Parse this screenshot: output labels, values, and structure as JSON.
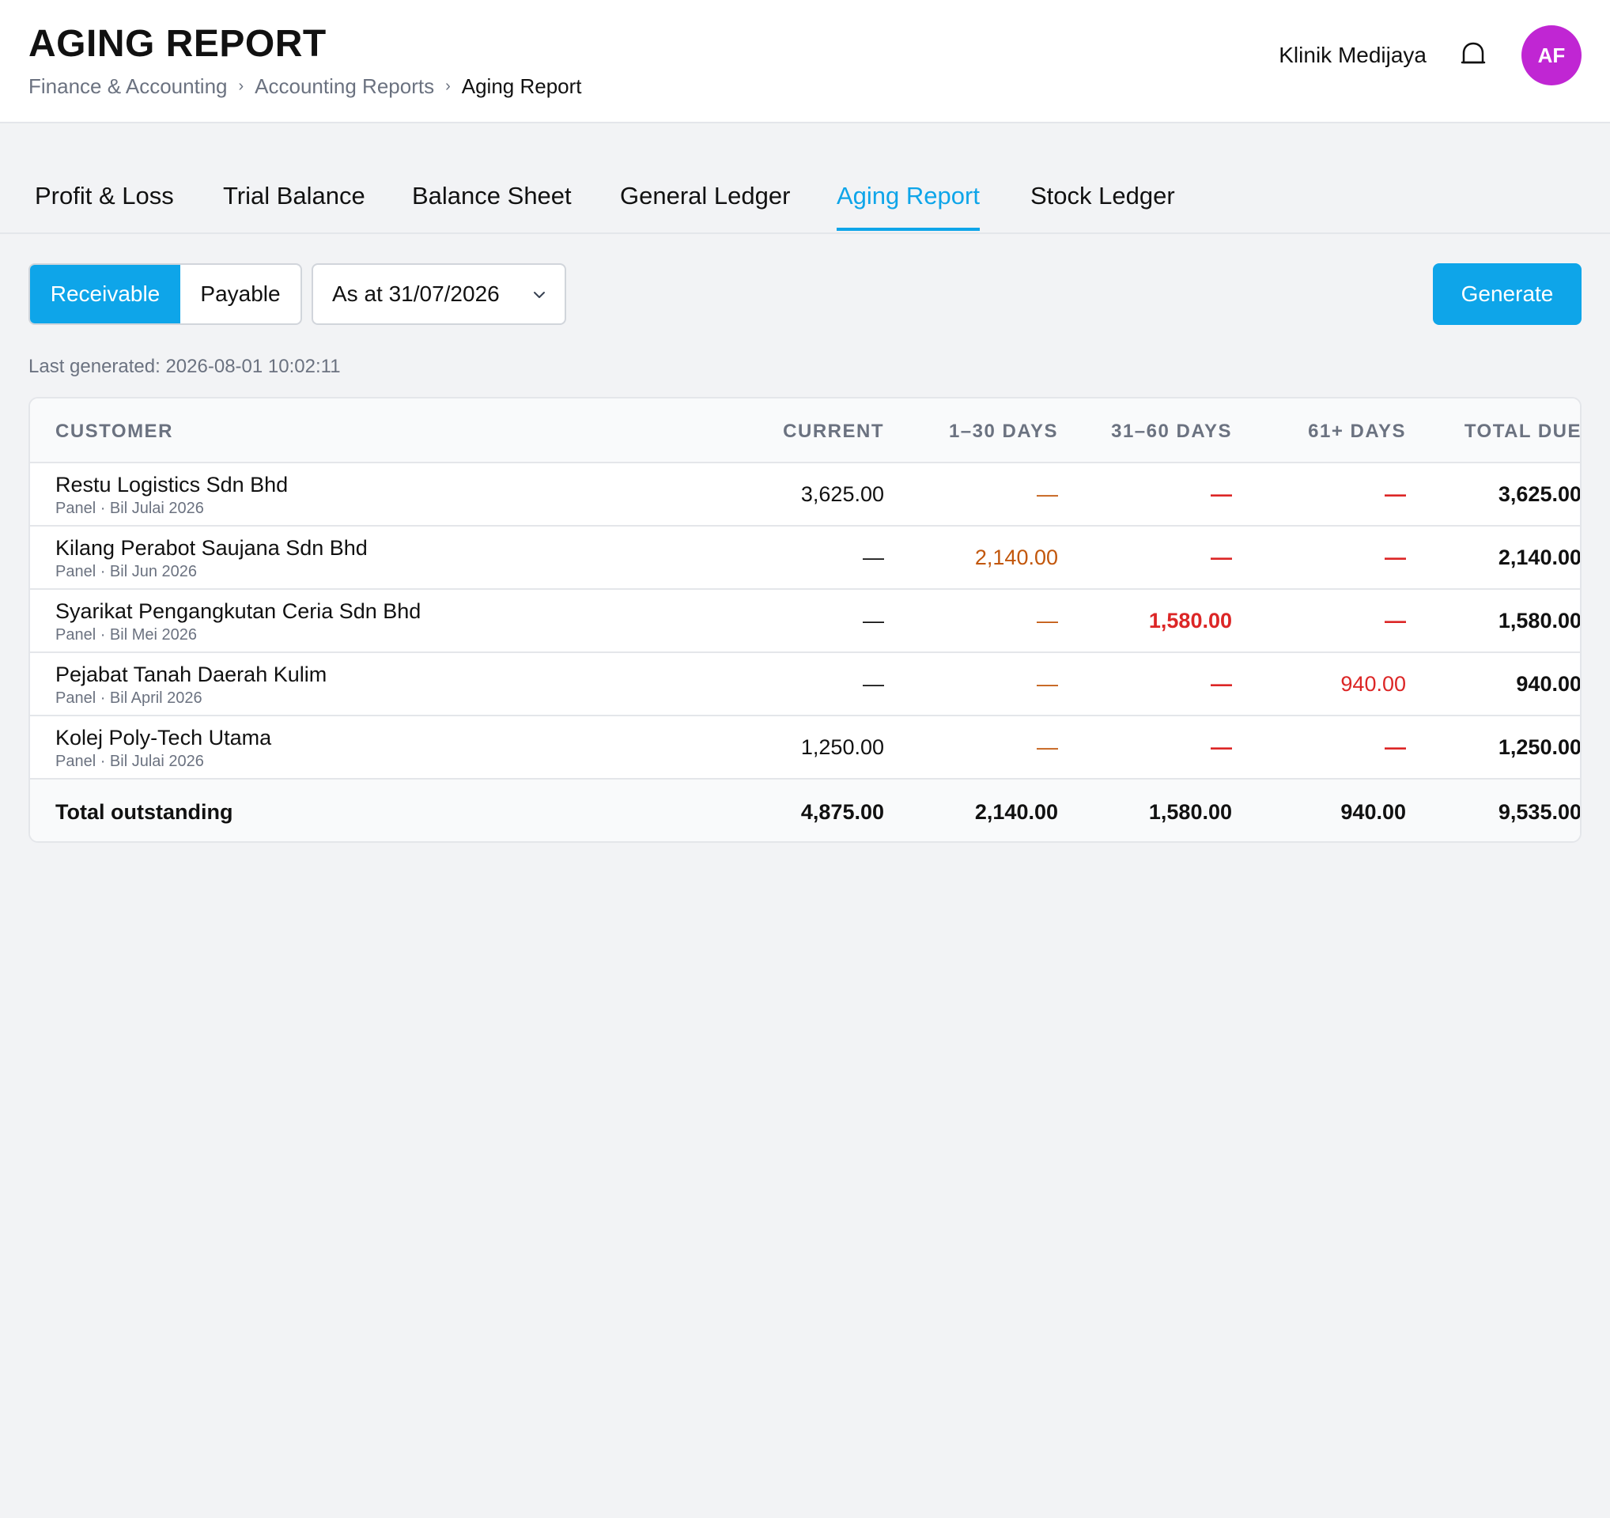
{
  "header": {
    "title": "AGING REPORT",
    "breadcrumb": [
      "Finance & Accounting",
      "Accounting Reports",
      "Aging Report"
    ],
    "org_name": "Klinik Medijaya",
    "avatar_initials": "AF"
  },
  "tabs": [
    "Profit & Loss",
    "Trial Balance",
    "Balance Sheet",
    "General Ledger",
    "Aging Report",
    "Stock Ledger"
  ],
  "active_tab": "Aging Report",
  "controls": {
    "segment_receivable": "Receivable",
    "segment_payable": "Payable",
    "active_segment": "Receivable",
    "date_select": "As at 31/07/2026",
    "generate_label": "Generate",
    "last_generated": "Last generated: 2026-08-01 10:02:11"
  },
  "table": {
    "columns": [
      "CUSTOMER",
      "CURRENT",
      "1–30 DAYS",
      "31–60 DAYS",
      "61+ DAYS",
      "TOTAL DUE"
    ],
    "rows": [
      {
        "name": "Restu Logistics Sdn Bhd",
        "sub": "Panel · Bil Julai 2026",
        "current": "3,625.00",
        "d1_30": "—",
        "d31_60": "—",
        "d61": "—",
        "total": "3,625.00"
      },
      {
        "name": "Kilang Perabot Saujana Sdn Bhd",
        "sub": "Panel · Bil Jun 2026",
        "current": "—",
        "d1_30": "2,140.00",
        "d31_60": "—",
        "d61": "—",
        "total": "2,140.00"
      },
      {
        "name": "Syarikat Pengangkutan Ceria Sdn Bhd",
        "sub": "Panel · Bil Mei 2026",
        "current": "—",
        "d1_30": "—",
        "d31_60": "1,580.00",
        "d61": "—",
        "total": "1,580.00"
      },
      {
        "name": "Pejabat Tanah Daerah Kulim",
        "sub": "Panel · Bil April 2026",
        "current": "—",
        "d1_30": "—",
        "d31_60": "—",
        "d61": "940.00",
        "total": "940.00"
      },
      {
        "name": "Kolej Poly-Tech Utama",
        "sub": "Panel · Bil Julai 2026",
        "current": "1,250.00",
        "d1_30": "—",
        "d31_60": "—",
        "d61": "—",
        "total": "1,250.00"
      }
    ],
    "footer": {
      "label": "Total outstanding",
      "current": "4,875.00",
      "d1_30": "2,140.00",
      "d31_60": "1,580.00",
      "d61": "940.00",
      "total": "9,535.00"
    }
  },
  "colors": {
    "accent": "#0ea5e9",
    "avatar": "#c026d3",
    "overdue_1_30": "#c2570c",
    "overdue_31_plus": "#dc2626"
  },
  "icons": {
    "notification": "bell-icon",
    "dropdown": "chevron-down-icon"
  }
}
